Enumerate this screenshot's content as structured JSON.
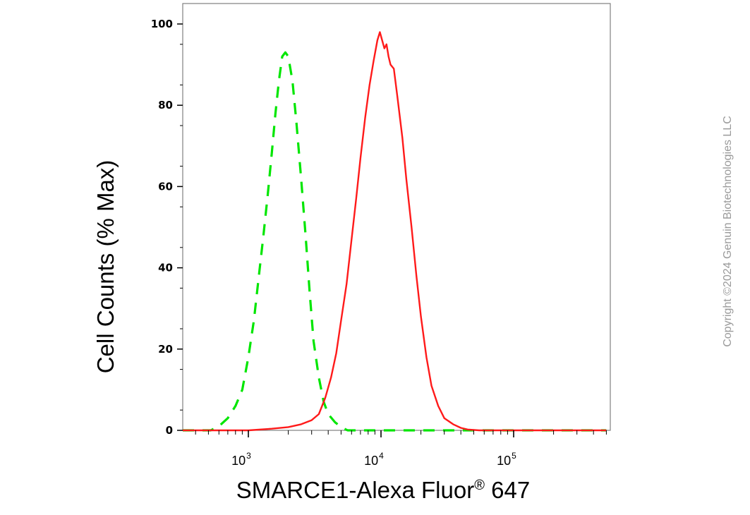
{
  "chart_data": {
    "type": "line",
    "xlabel": "SMARCE1-Alexa Fluor",
    "xlabel_superscript": "®",
    "xlabel_suffix": " 647",
    "ylabel": "Cell Counts (% Max)",
    "x_scale": "log",
    "xlim": [
      250,
      500000
    ],
    "ylim": [
      0,
      105
    ],
    "y_ticks": [
      0,
      20,
      40,
      60,
      80,
      100
    ],
    "x_ticks": [
      {
        "value": 1000,
        "base": "10",
        "exp": "3"
      },
      {
        "value": 10000,
        "base": "10",
        "exp": "4"
      },
      {
        "value": 100000,
        "base": "10",
        "exp": "5"
      }
    ],
    "grid": false,
    "legend": "none",
    "series": [
      {
        "style": "dashed",
        "color": "#00e600",
        "points": [
          [
            250,
            0
          ],
          [
            420,
            0
          ],
          [
            520,
            0
          ],
          [
            600,
            1
          ],
          [
            700,
            3
          ],
          [
            800,
            6
          ],
          [
            900,
            10
          ],
          [
            1000,
            18
          ],
          [
            1100,
            27
          ],
          [
            1200,
            38
          ],
          [
            1300,
            48
          ],
          [
            1400,
            58
          ],
          [
            1500,
            68
          ],
          [
            1600,
            78
          ],
          [
            1700,
            86
          ],
          [
            1800,
            92
          ],
          [
            1900,
            93
          ],
          [
            2000,
            92
          ],
          [
            2150,
            86
          ],
          [
            2300,
            76
          ],
          [
            2500,
            62
          ],
          [
            2700,
            48
          ],
          [
            2900,
            34
          ],
          [
            3100,
            22
          ],
          [
            3400,
            13
          ],
          [
            3700,
            7
          ],
          [
            4000,
            4
          ],
          [
            4500,
            2
          ],
          [
            5000,
            0.8
          ],
          [
            5600,
            0
          ],
          [
            7000,
            0
          ],
          [
            20000,
            0
          ],
          [
            60000,
            0
          ],
          [
            200000,
            0
          ],
          [
            500000,
            0
          ]
        ]
      },
      {
        "style": "solid",
        "color": "#ff1a1a",
        "points": [
          [
            250,
            0
          ],
          [
            1000,
            0
          ],
          [
            1500,
            0.4
          ],
          [
            2000,
            0.8
          ],
          [
            2500,
            1.5
          ],
          [
            3000,
            2.5
          ],
          [
            3400,
            4
          ],
          [
            3800,
            8
          ],
          [
            4200,
            13
          ],
          [
            4600,
            19
          ],
          [
            5000,
            27
          ],
          [
            5500,
            36
          ],
          [
            6000,
            47
          ],
          [
            6500,
            57
          ],
          [
            7000,
            67
          ],
          [
            7600,
            77
          ],
          [
            8200,
            85
          ],
          [
            8800,
            91
          ],
          [
            9400,
            96
          ],
          [
            9800,
            98
          ],
          [
            10200,
            96
          ],
          [
            10600,
            94
          ],
          [
            11000,
            95
          ],
          [
            11400,
            92
          ],
          [
            11800,
            90
          ],
          [
            12500,
            89
          ],
          [
            13300,
            82
          ],
          [
            14500,
            72
          ],
          [
            15500,
            62
          ],
          [
            17000,
            50
          ],
          [
            18500,
            38
          ],
          [
            20000,
            28
          ],
          [
            22000,
            18
          ],
          [
            24000,
            11
          ],
          [
            27000,
            6
          ],
          [
            30000,
            3
          ],
          [
            35000,
            1.5
          ],
          [
            40000,
            0.6
          ],
          [
            45000,
            0.2
          ],
          [
            55000,
            0
          ],
          [
            100000,
            0
          ],
          [
            250000,
            0
          ],
          [
            500000,
            0
          ]
        ]
      }
    ]
  },
  "watermark": "Copyright ©2024 Genuin Biotechnologies LLC"
}
